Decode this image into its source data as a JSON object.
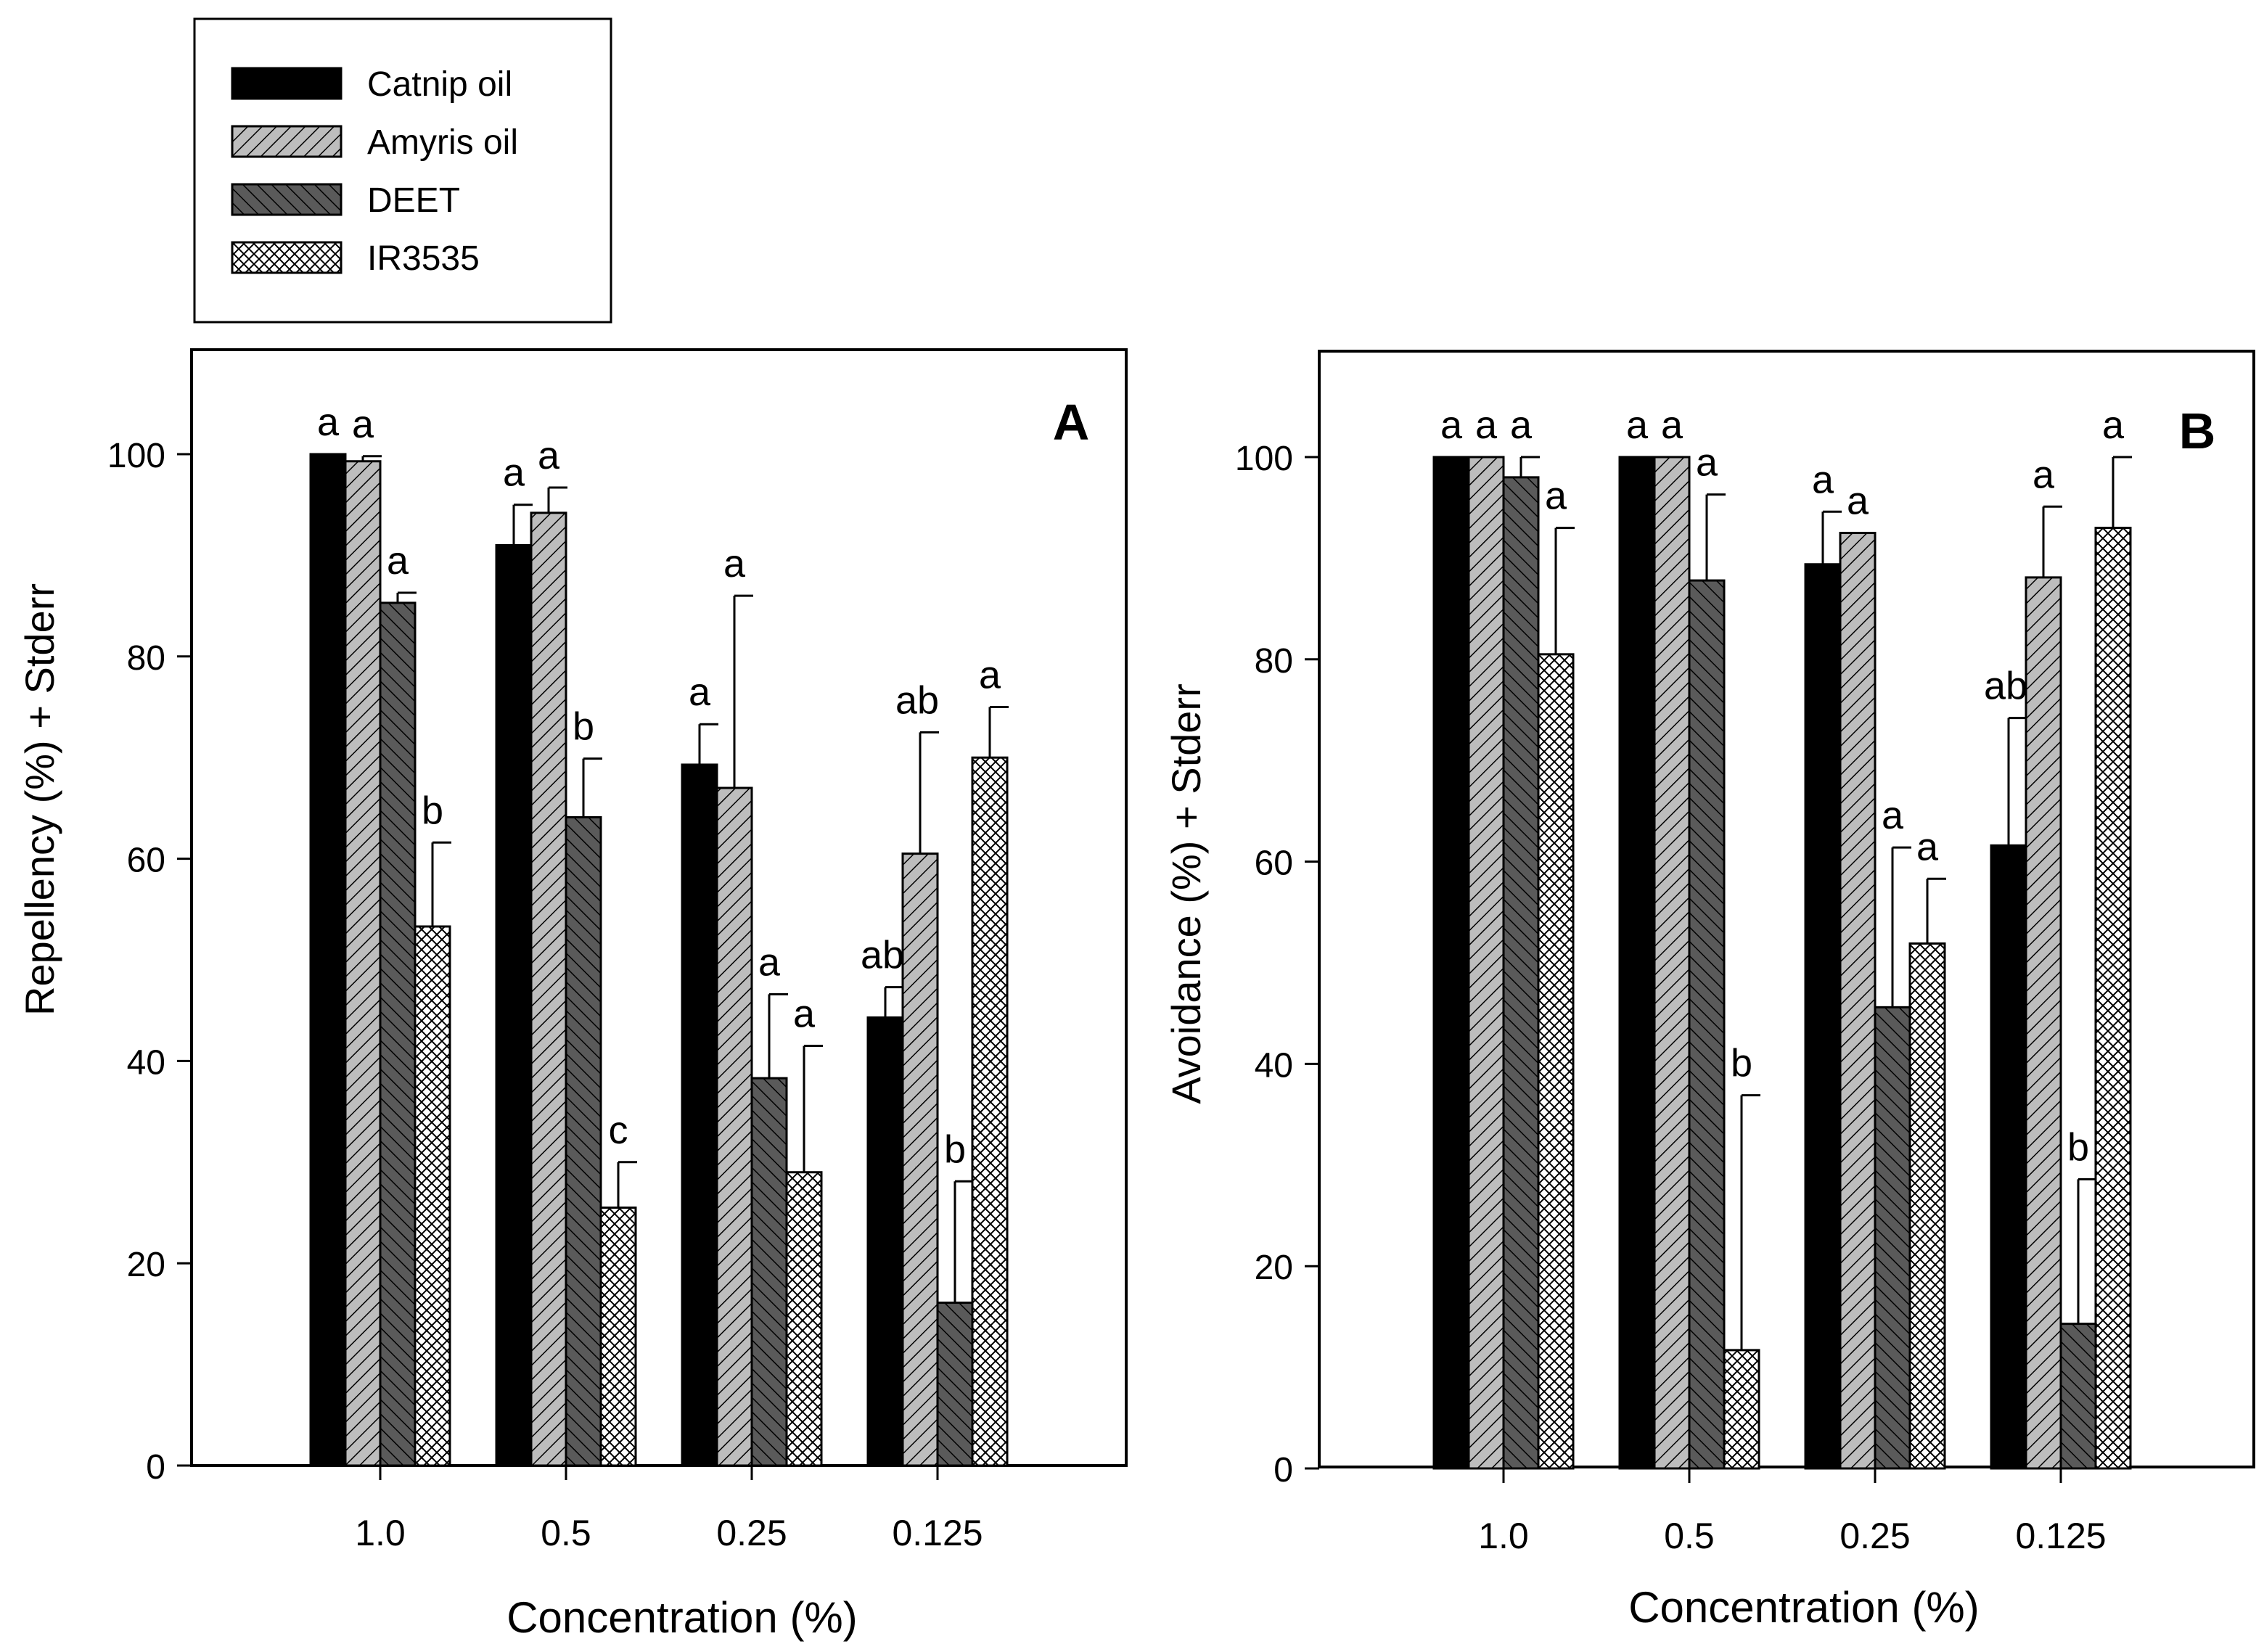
{
  "legend": {
    "entries": [
      {
        "label": "Catnip oil",
        "pattern": "solid-black"
      },
      {
        "label": "Amyris oil",
        "pattern": "light-diagonal"
      },
      {
        "label": "DEET",
        "pattern": "dark-diagonal"
      },
      {
        "label": "IR3535",
        "pattern": "crosshatch"
      }
    ]
  },
  "colors": {
    "catnip": "#000000",
    "amyris": "#b8b8b8",
    "deet": "#555555",
    "ir3535": "#ffffff"
  },
  "chart_data": [
    {
      "type": "bar",
      "panel_letter": "A",
      "xlabel": "Concentration (%)",
      "ylabel": "Repellency (%) + Stderr",
      "ylim": [
        0,
        110
      ],
      "yticks": [
        0,
        20,
        40,
        60,
        80,
        100
      ],
      "categories": [
        "1.0",
        "0.5",
        "0.25",
        "0.125"
      ],
      "legend_position": "top-left, outside plot",
      "grid": false,
      "series": [
        {
          "name": "Catnip oil",
          "values": [
            100,
            91,
            69.3,
            44.3
          ],
          "errors": [
            0,
            4,
            4,
            3
          ],
          "letters": [
            "a",
            "a",
            "a",
            "ab"
          ]
        },
        {
          "name": "Amyris oil",
          "values": [
            99.3,
            94.2,
            67,
            60.5
          ],
          "errors": [
            0.5,
            2.5,
            19,
            12
          ],
          "letters": [
            "a",
            "a",
            "a",
            "ab"
          ]
        },
        {
          "name": "DEET",
          "values": [
            85.3,
            64.1,
            38.3,
            16.1
          ],
          "errors": [
            1,
            5.8,
            8.3,
            12
          ],
          "letters": [
            "a",
            "b",
            "a",
            "b"
          ]
        },
        {
          "name": "IR3535",
          "values": [
            53.3,
            25.5,
            29,
            70
          ],
          "errors": [
            8.3,
            4.5,
            12.5,
            5
          ],
          "letters": [
            "b",
            "c",
            "a",
            "a"
          ]
        }
      ]
    },
    {
      "type": "bar",
      "panel_letter": "B",
      "xlabel": "Concentration (%)",
      "ylabel": "Avoidance (%) + Stderr",
      "ylim": [
        0,
        110
      ],
      "yticks": [
        0,
        20,
        40,
        60,
        80,
        100
      ],
      "categories": [
        "1.0",
        "0.5",
        "0.25",
        "0.125"
      ],
      "grid": false,
      "series": [
        {
          "name": "Catnip oil",
          "values": [
            100,
            100,
            89.4,
            61.6
          ],
          "errors": [
            0,
            0,
            5.2,
            12.6
          ],
          "letters": [
            "a",
            "a",
            "a",
            "ab"
          ]
        },
        {
          "name": "Amyris oil",
          "values": [
            100,
            100,
            92.5,
            88.1
          ],
          "errors": [
            0,
            0,
            0,
            7
          ],
          "letters": [
            "a",
            "a",
            "a",
            "a"
          ]
        },
        {
          "name": "DEET",
          "values": [
            98,
            87.8,
            45.6,
            14.3
          ],
          "errors": [
            2,
            8.5,
            15.8,
            14.3
          ],
          "letters": [
            "a",
            "a",
            "a",
            "b"
          ]
        },
        {
          "name": "IR3535",
          "values": [
            80.5,
            11.7,
            51.9,
            93
          ],
          "errors": [
            12.5,
            25.2,
            6.4,
            7
          ],
          "letters": [
            "a",
            "b",
            "a",
            "a"
          ]
        }
      ]
    }
  ]
}
